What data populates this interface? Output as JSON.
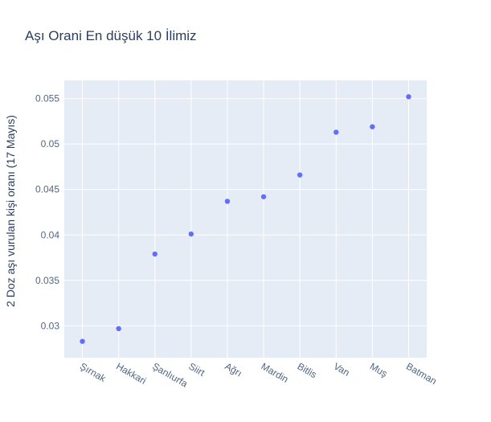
{
  "chart_data": {
    "type": "scatter",
    "title": "Aşı Orani En düşük 10 İlimiz",
    "xlabel": "",
    "ylabel": "2 Doz aşı vurulan kişi oranı (17 Mayıs)",
    "categories": [
      "Şırnak",
      "Hakkari",
      "Şanlıurfa",
      "Siirt",
      "Ağrı",
      "Mardin",
      "Bitlis",
      "Van",
      "Muş",
      "Batman"
    ],
    "values": [
      0.0283,
      0.0297,
      0.0379,
      0.0401,
      0.0437,
      0.0442,
      0.0466,
      0.0513,
      0.0519,
      0.0552
    ],
    "ylim": [
      0.0265,
      0.057
    ],
    "yticks": [
      0.03,
      0.035,
      0.04,
      0.045,
      0.05,
      0.055
    ],
    "ytick_labels": [
      "0.03",
      "0.035",
      "0.04",
      "0.045",
      "0.05",
      "0.055"
    ],
    "grid": true,
    "marker_color": "#636efa",
    "plot_bg": "#e5ecf6",
    "grid_color": "#ffffff"
  }
}
